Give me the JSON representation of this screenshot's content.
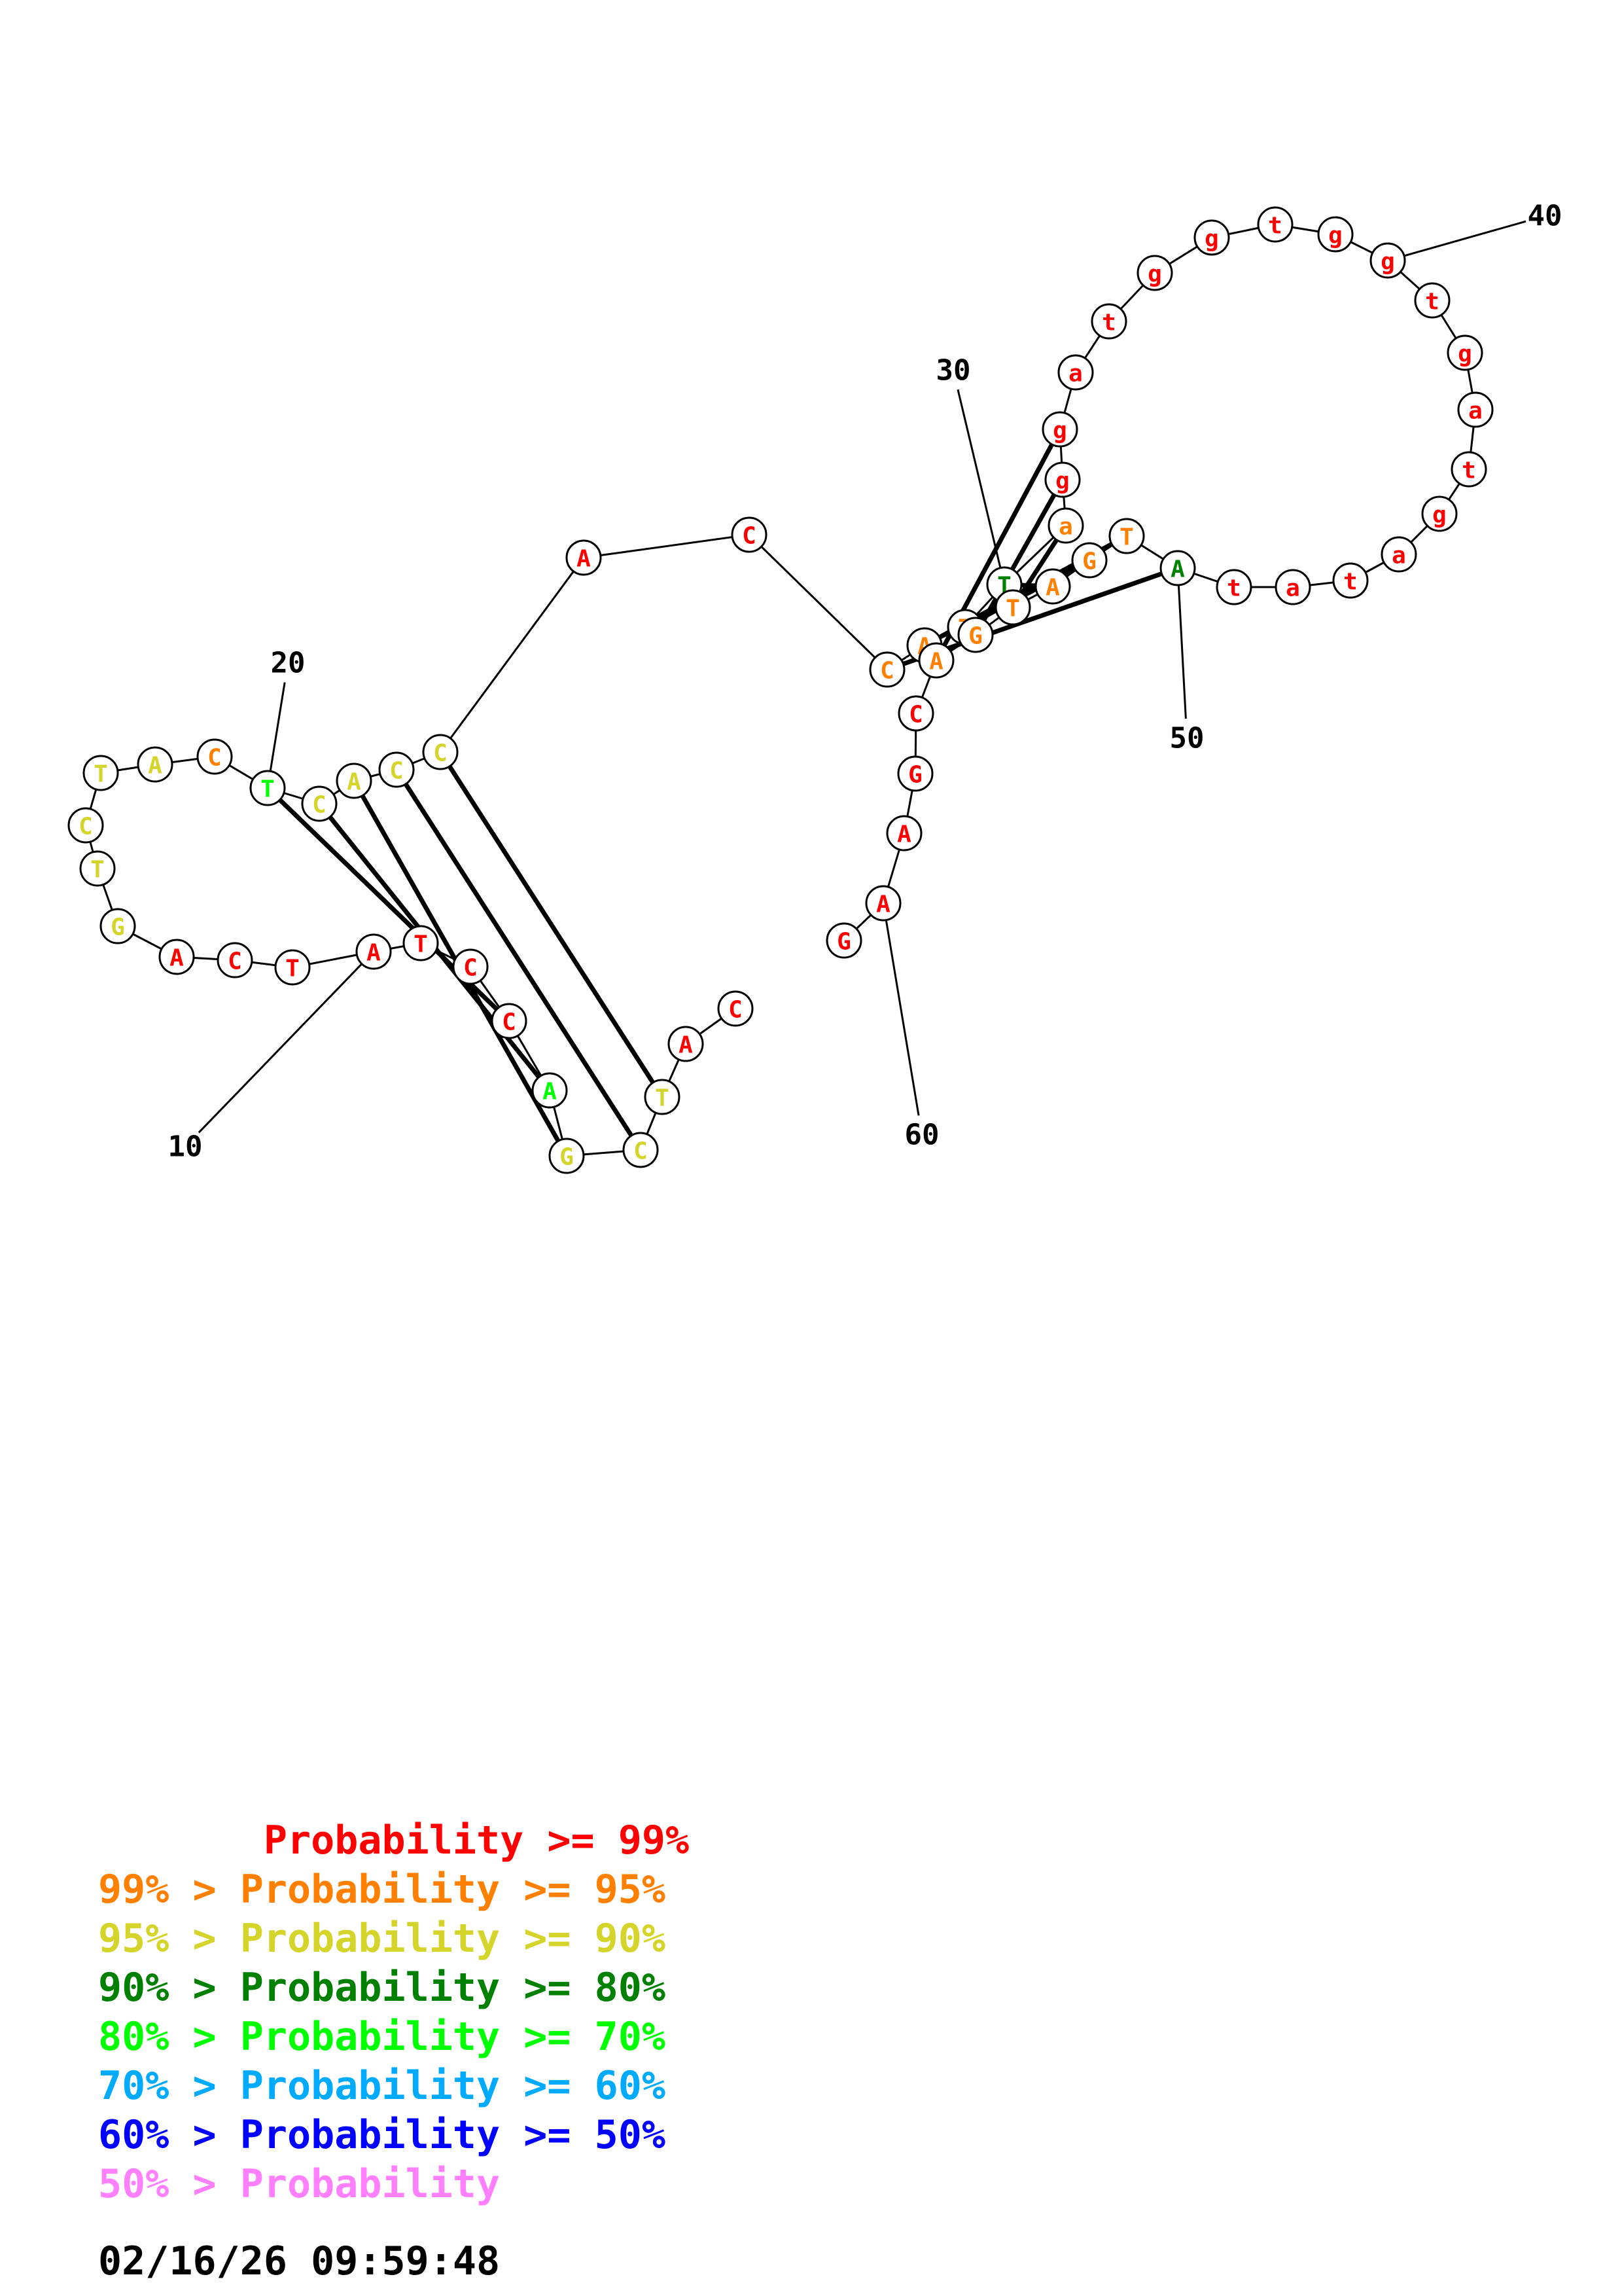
{
  "structure": {
    "sequence": [
      "C",
      "A",
      "T",
      "C",
      "G",
      "A",
      "C",
      "C",
      "T",
      "A",
      "T",
      "C",
      "A",
      "G",
      "T",
      "C",
      "T",
      "A",
      "C",
      "T",
      "C",
      "A",
      "C",
      "C",
      "A",
      "C",
      "C",
      "A",
      "T",
      "T",
      "a",
      "g",
      "g",
      "a",
      "t",
      "g",
      "g",
      "t",
      "g",
      "g",
      "t",
      "g",
      "a",
      "t",
      "g",
      "a",
      "t",
      "a",
      "t",
      "A",
      "T",
      "G",
      "A",
      "T",
      "G",
      "A",
      "C",
      "G",
      "A",
      "A",
      "G"
    ],
    "probability_bins": [
      0,
      0,
      2,
      2,
      2,
      4,
      0,
      0,
      0,
      0,
      0,
      0,
      0,
      2,
      2,
      2,
      2,
      2,
      1,
      4,
      2,
      2,
      2,
      2,
      0,
      0,
      1,
      1,
      1,
      3,
      1,
      0,
      0,
      0,
      0,
      0,
      0,
      0,
      0,
      0,
      0,
      0,
      0,
      0,
      0,
      0,
      0,
      0,
      0,
      3,
      1,
      1,
      1,
      1,
      1,
      1,
      0,
      0,
      0,
      0,
      0
    ],
    "base_pairs": [
      [
        6,
        19
      ],
      [
        5,
        20
      ],
      [
        4,
        21
      ],
      [
        3,
        22
      ],
      [
        2,
        23
      ],
      [
        26,
        49
      ],
      [
        27,
        50
      ],
      [
        28,
        51
      ],
      [
        29,
        52
      ],
      [
        30,
        53
      ],
      [
        31,
        54
      ],
      [
        32,
        55
      ]
    ],
    "index_labels": [
      "10",
      "20",
      "30",
      "40",
      "50",
      "60"
    ]
  },
  "legend": [
    {
      "prefix": "       ",
      "text": "Probability >= 99%",
      "color": "#ff0000"
    },
    {
      "prefix": "99% > ",
      "text": "Probability >= 95%",
      "color": "#ff8000"
    },
    {
      "prefix": "95% > ",
      "text": "Probability >= 90%",
      "color": "#d4d42a"
    },
    {
      "prefix": "90% > ",
      "text": "Probability >= 80%",
      "color": "#008000"
    },
    {
      "prefix": "80% > ",
      "text": "Probability >= 70%",
      "color": "#00ff00"
    },
    {
      "prefix": "70% > ",
      "text": "Probability >= 60%",
      "color": "#00aaff"
    },
    {
      "prefix": "60% > ",
      "text": "Probability >= 50%",
      "color": "#0000ff"
    },
    {
      "prefix": "50% > ",
      "text": "Probability",
      "color": "#ff80ff"
    }
  ],
  "timestamp": "02/16/26 09:59:48"
}
